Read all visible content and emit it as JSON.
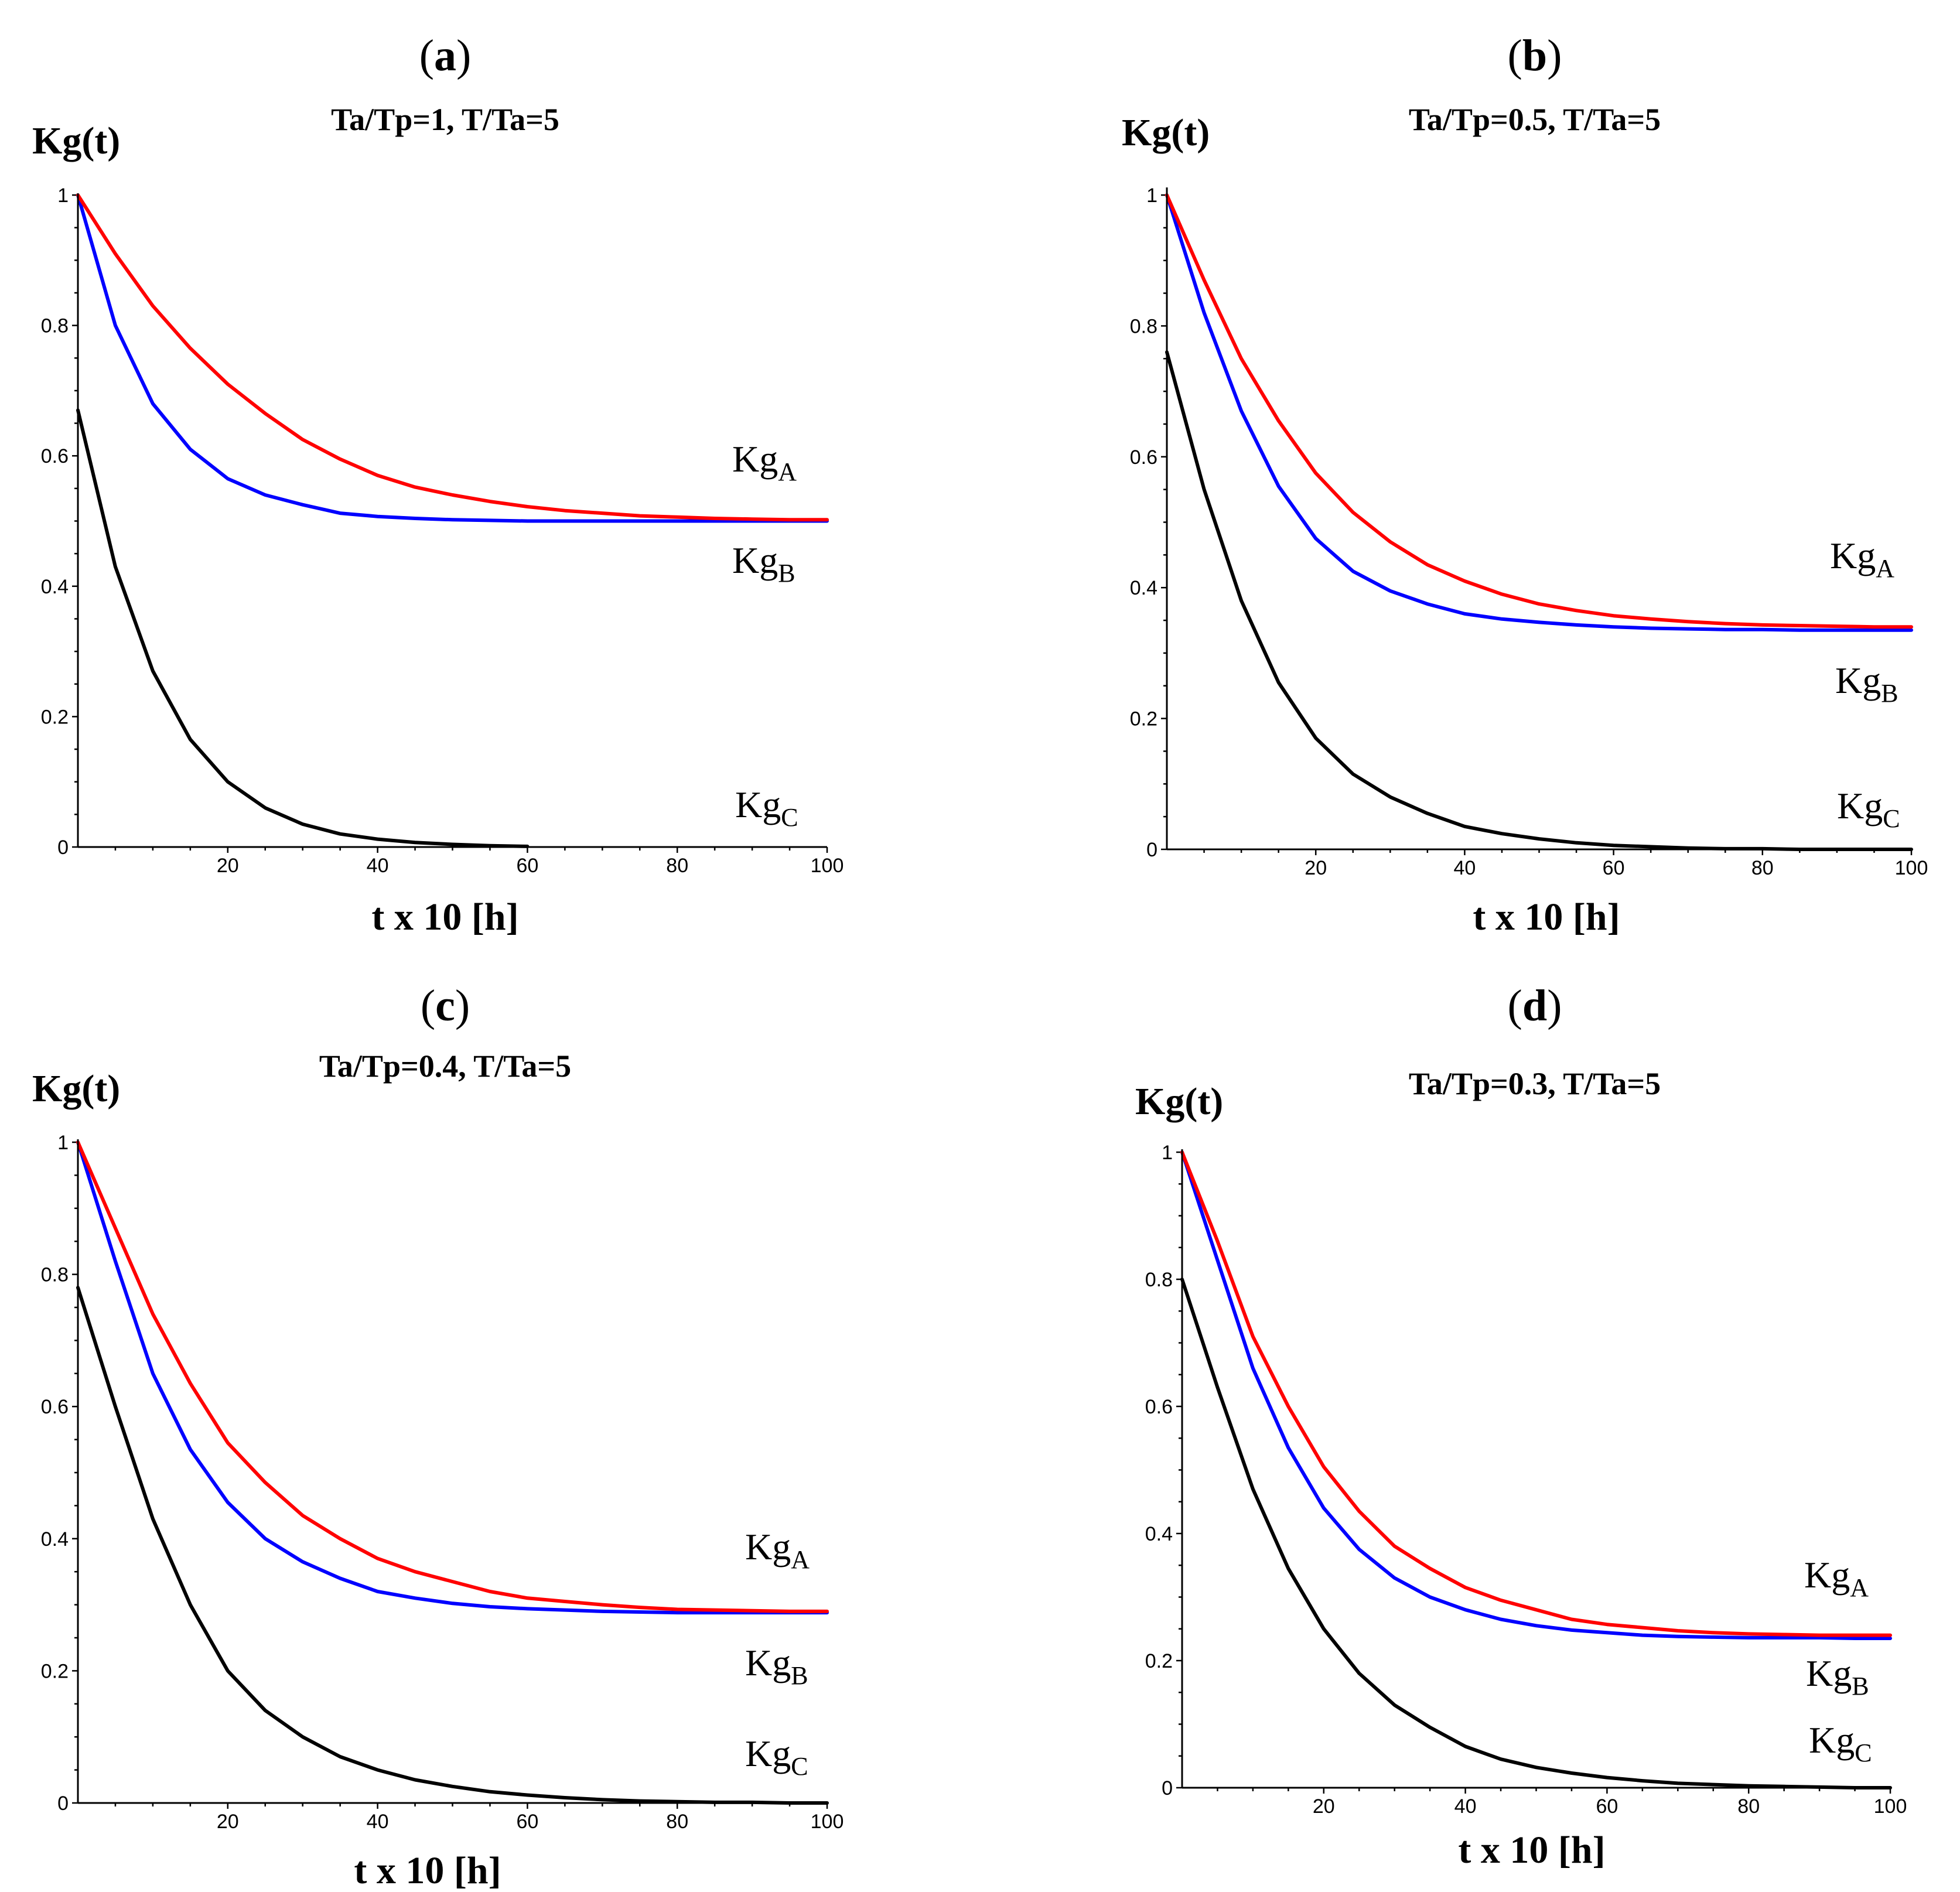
{
  "colors": {
    "A": "#ff0000",
    "B": "#0000ff",
    "C": "#000000"
  },
  "chart_data": [
    {
      "type": "line",
      "panel": "(a)",
      "panel_letter": "a",
      "subtitle": "Ta/Tp=1,  T/Ta=5",
      "ylabel": "Kg(t)",
      "xlabel": "t x 10 [h]",
      "xlim": [
        0,
        100
      ],
      "ylim": [
        0,
        1
      ],
      "xticks": [
        "20",
        "40",
        "60",
        "80",
        "100"
      ],
      "yticks": [
        "0",
        "0.2",
        "0.4",
        "0.6",
        "0.8",
        "1"
      ],
      "series": [
        {
          "name": "KgA",
          "label_main": "Kg",
          "label_sub": "A",
          "color": "#ff0000",
          "x": [
            0,
            5,
            10,
            15,
            20,
            25,
            30,
            35,
            40,
            45,
            50,
            55,
            60,
            65,
            70,
            75,
            80,
            85,
            90,
            95,
            100
          ],
          "y": [
            1.0,
            0.91,
            0.83,
            0.765,
            0.71,
            0.665,
            0.625,
            0.595,
            0.57,
            0.552,
            0.54,
            0.53,
            0.522,
            0.516,
            0.512,
            0.508,
            0.506,
            0.504,
            0.503,
            0.502,
            0.502
          ]
        },
        {
          "name": "KgB",
          "label_main": "Kg",
          "label_sub": "B",
          "color": "#0000ff",
          "x": [
            0,
            5,
            10,
            15,
            20,
            25,
            30,
            35,
            40,
            45,
            50,
            55,
            60,
            65,
            70,
            75,
            80,
            85,
            90,
            95,
            100
          ],
          "y": [
            1.0,
            0.8,
            0.68,
            0.61,
            0.565,
            0.54,
            0.525,
            0.512,
            0.507,
            0.504,
            0.502,
            0.501,
            0.5,
            0.5,
            0.5,
            0.5,
            0.5,
            0.5,
            0.5,
            0.5,
            0.5
          ]
        },
        {
          "name": "KgC",
          "label_main": "Kg",
          "label_sub": "C",
          "color": "#000000",
          "x": [
            0,
            5,
            10,
            15,
            20,
            25,
            30,
            35,
            40,
            45,
            50,
            55,
            60
          ],
          "y": [
            0.67,
            0.43,
            0.27,
            0.165,
            0.1,
            0.06,
            0.035,
            0.02,
            0.012,
            0.007,
            0.004,
            0.002,
            0.001
          ]
        }
      ]
    },
    {
      "type": "line",
      "panel": "(b)",
      "panel_letter": "b",
      "subtitle": "Ta/Tp=0.5,  T/Ta=5",
      "ylabel": "Kg(t)",
      "xlabel": "t x 10 [h]",
      "xlim": [
        0,
        100
      ],
      "ylim": [
        0,
        1
      ],
      "xticks": [
        "20",
        "40",
        "60",
        "80",
        "100"
      ],
      "yticks": [
        "0",
        "0.2",
        "0.4",
        "0.6",
        "0.8",
        "1"
      ],
      "series": [
        {
          "name": "KgA",
          "label_main": "Kg",
          "label_sub": "A",
          "color": "#ff0000",
          "x": [
            0,
            5,
            10,
            15,
            20,
            25,
            30,
            35,
            40,
            45,
            50,
            55,
            60,
            65,
            70,
            75,
            80,
            85,
            90,
            95,
            100
          ],
          "y": [
            1.0,
            0.87,
            0.75,
            0.655,
            0.575,
            0.515,
            0.47,
            0.435,
            0.41,
            0.39,
            0.375,
            0.365,
            0.357,
            0.352,
            0.348,
            0.345,
            0.343,
            0.342,
            0.341,
            0.34,
            0.34
          ]
        },
        {
          "name": "KgB",
          "label_main": "Kg",
          "label_sub": "B",
          "color": "#0000ff",
          "x": [
            0,
            5,
            10,
            15,
            20,
            25,
            30,
            35,
            40,
            45,
            50,
            55,
            60,
            65,
            70,
            75,
            80,
            85,
            90,
            95,
            100
          ],
          "y": [
            1.0,
            0.82,
            0.67,
            0.555,
            0.475,
            0.425,
            0.395,
            0.375,
            0.36,
            0.352,
            0.347,
            0.343,
            0.34,
            0.338,
            0.337,
            0.336,
            0.336,
            0.335,
            0.335,
            0.335,
            0.335
          ]
        },
        {
          "name": "KgC",
          "label_main": "Kg",
          "label_sub": "C",
          "color": "#000000",
          "x": [
            0,
            5,
            10,
            15,
            20,
            25,
            30,
            35,
            40,
            45,
            50,
            55,
            60,
            65,
            70,
            75,
            80,
            85,
            90,
            95,
            100
          ],
          "y": [
            0.76,
            0.55,
            0.38,
            0.255,
            0.17,
            0.115,
            0.08,
            0.055,
            0.035,
            0.024,
            0.016,
            0.01,
            0.006,
            0.004,
            0.002,
            0.001,
            0.001,
            0.0,
            0.0,
            0.0,
            0.0
          ]
        }
      ]
    },
    {
      "type": "line",
      "panel": "(c)",
      "panel_letter": "c",
      "subtitle": "Ta/Tp=0.4,  T/Ta=5",
      "ylabel": "Kg(t)",
      "xlabel": "t x 10 [h]",
      "xlim": [
        0,
        100
      ],
      "ylim": [
        0,
        1
      ],
      "xticks": [
        "20",
        "40",
        "60",
        "80",
        "100"
      ],
      "yticks": [
        "0",
        "0.2",
        "0.4",
        "0.6",
        "0.8",
        "1"
      ],
      "series": [
        {
          "name": "KgA",
          "label_main": "Kg",
          "label_sub": "A",
          "color": "#ff0000",
          "x": [
            0,
            5,
            10,
            15,
            20,
            25,
            30,
            35,
            40,
            45,
            50,
            55,
            60,
            65,
            70,
            75,
            80,
            85,
            90,
            95,
            100
          ],
          "y": [
            1.0,
            0.87,
            0.74,
            0.635,
            0.545,
            0.485,
            0.435,
            0.4,
            0.37,
            0.35,
            0.335,
            0.32,
            0.31,
            0.305,
            0.3,
            0.296,
            0.293,
            0.292,
            0.291,
            0.29,
            0.29
          ]
        },
        {
          "name": "KgB",
          "label_main": "Kg",
          "label_sub": "B",
          "color": "#0000ff",
          "x": [
            0,
            5,
            10,
            15,
            20,
            25,
            30,
            35,
            40,
            45,
            50,
            55,
            60,
            65,
            70,
            75,
            80,
            85,
            90,
            95,
            100
          ],
          "y": [
            1.0,
            0.82,
            0.65,
            0.535,
            0.455,
            0.4,
            0.365,
            0.34,
            0.32,
            0.31,
            0.302,
            0.297,
            0.294,
            0.292,
            0.29,
            0.289,
            0.288,
            0.288,
            0.288,
            0.288,
            0.288
          ]
        },
        {
          "name": "KgC",
          "label_main": "Kg",
          "label_sub": "C",
          "color": "#000000",
          "x": [
            0,
            5,
            10,
            15,
            20,
            25,
            30,
            35,
            40,
            45,
            50,
            55,
            60,
            65,
            70,
            75,
            80,
            85,
            90,
            95,
            100
          ],
          "y": [
            0.78,
            0.6,
            0.43,
            0.3,
            0.2,
            0.14,
            0.1,
            0.07,
            0.05,
            0.035,
            0.025,
            0.017,
            0.012,
            0.008,
            0.005,
            0.003,
            0.002,
            0.001,
            0.001,
            0.0,
            0.0
          ]
        }
      ]
    },
    {
      "type": "line",
      "panel": "(d)",
      "panel_letter": "d",
      "subtitle": "Ta/Tp=0.3,  T/Ta=5",
      "ylabel": "Kg(t)",
      "xlabel": "t x 10 [h]",
      "xlim": [
        0,
        100
      ],
      "ylim": [
        0,
        1
      ],
      "xticks": [
        "20",
        "40",
        "60",
        "80",
        "100"
      ],
      "yticks": [
        "0",
        "0.2",
        "0.4",
        "0.6",
        "0.8",
        "1"
      ],
      "series": [
        {
          "name": "KgA",
          "label_main": "Kg",
          "label_sub": "A",
          "color": "#ff0000",
          "x": [
            0,
            5,
            10,
            15,
            20,
            25,
            30,
            35,
            40,
            45,
            50,
            55,
            60,
            65,
            70,
            75,
            80,
            85,
            90,
            95,
            100
          ],
          "y": [
            1.0,
            0.86,
            0.71,
            0.6,
            0.505,
            0.435,
            0.38,
            0.345,
            0.315,
            0.295,
            0.28,
            0.265,
            0.257,
            0.252,
            0.247,
            0.244,
            0.242,
            0.241,
            0.24,
            0.24,
            0.24
          ]
        },
        {
          "name": "KgB",
          "label_main": "Kg",
          "label_sub": "B",
          "color": "#0000ff",
          "x": [
            0,
            5,
            10,
            15,
            20,
            25,
            30,
            35,
            40,
            45,
            50,
            55,
            60,
            65,
            70,
            75,
            80,
            85,
            90,
            95,
            100
          ],
          "y": [
            1.0,
            0.83,
            0.66,
            0.535,
            0.44,
            0.375,
            0.33,
            0.3,
            0.28,
            0.265,
            0.255,
            0.248,
            0.244,
            0.24,
            0.238,
            0.237,
            0.236,
            0.236,
            0.236,
            0.235,
            0.235
          ]
        },
        {
          "name": "KgC",
          "label_main": "Kg",
          "label_sub": "C",
          "color": "#000000",
          "x": [
            0,
            5,
            10,
            15,
            20,
            25,
            30,
            35,
            40,
            45,
            50,
            55,
            60,
            65,
            70,
            75,
            80,
            85,
            90,
            95,
            100
          ],
          "y": [
            0.8,
            0.63,
            0.47,
            0.345,
            0.25,
            0.18,
            0.13,
            0.095,
            0.065,
            0.045,
            0.032,
            0.023,
            0.016,
            0.011,
            0.007,
            0.005,
            0.003,
            0.002,
            0.001,
            0.0,
            0.0
          ]
        }
      ]
    }
  ]
}
